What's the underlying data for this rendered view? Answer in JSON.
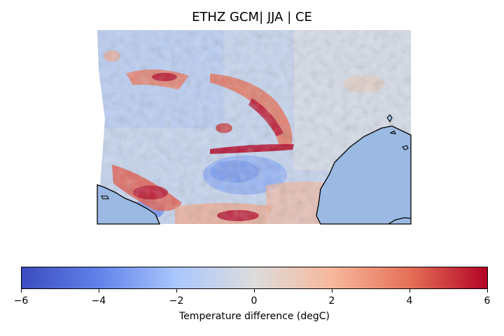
{
  "map": {
    "title": "ETHZ GCM| JJA | CE",
    "colormap": "coolwarm",
    "water_color": "#9bb9e2",
    "coast_color": "#000000"
  },
  "colorbar": {
    "label": "Temperature difference (degC)",
    "min": -6,
    "max": 6,
    "ticks": [
      {
        "value": -6,
        "label": "−6"
      },
      {
        "value": -4,
        "label": "−4"
      },
      {
        "value": -2,
        "label": "−2"
      },
      {
        "value": 0,
        "label": "0"
      },
      {
        "value": 2,
        "label": "2"
      },
      {
        "value": 4,
        "label": "4"
      },
      {
        "value": 6,
        "label": "6"
      }
    ]
  }
}
